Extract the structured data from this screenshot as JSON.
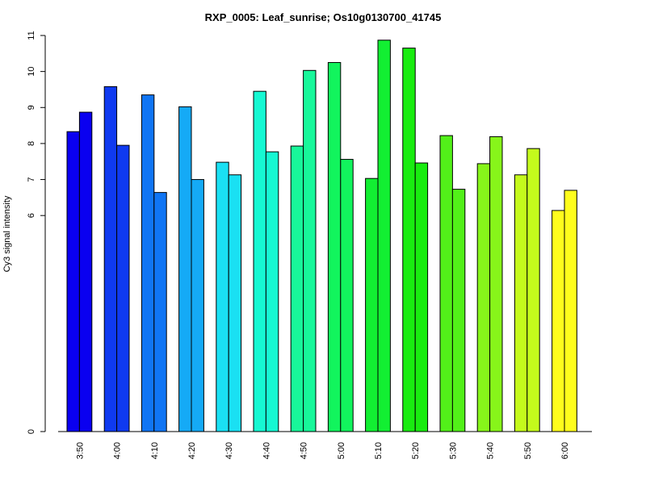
{
  "chart_data": {
    "type": "bar",
    "title": "RXP_0005: Leaf_sunrise; Os10g0130700_41745",
    "xlabel": "",
    "ylabel": "Cy3 signal intensity",
    "ylim": [
      0,
      11
    ],
    "yticks": [
      0,
      6,
      7,
      8,
      9,
      10,
      11
    ],
    "categories": [
      "3:50",
      "4:00",
      "4:10",
      "4:20",
      "4:30",
      "4:40",
      "4:50",
      "5:00",
      "5:10",
      "5:20",
      "5:30",
      "5:40",
      "5:50",
      "6:00"
    ],
    "series": [
      {
        "values": [
          8.33,
          9.58,
          9.35,
          9.02,
          7.48,
          9.45,
          7.93,
          10.25,
          7.03,
          10.65,
          8.22,
          7.44,
          7.13,
          6.14
        ]
      },
      {
        "values": [
          8.87,
          7.95,
          6.64,
          7.0,
          7.13,
          7.77,
          10.03,
          7.56,
          10.87,
          7.46,
          6.73,
          8.19,
          7.86,
          6.7
        ]
      }
    ],
    "colors": [
      "#0a00f0",
      "#0f3af0",
      "#1075f4",
      "#15aaf6",
      "#1ae0f3",
      "#16f8d2",
      "#18f79a",
      "#12f45d",
      "#12ef32",
      "#19ec10",
      "#52f019",
      "#87f51a",
      "#c4fa1c",
      "#fffd1c"
    ],
    "grid": false,
    "legend": "none"
  }
}
